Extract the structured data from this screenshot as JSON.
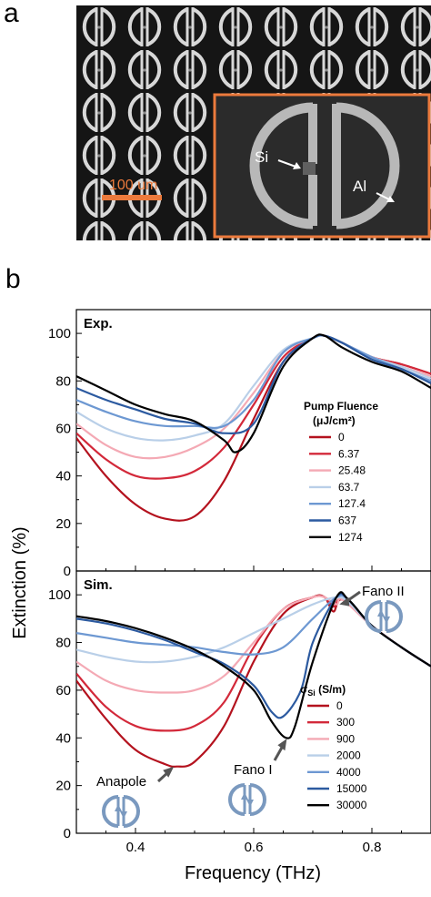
{
  "panel_a": {
    "letter": "a",
    "scale_bar_label": "100 um",
    "inset_label_si": "Si",
    "inset_label_al": "Al"
  },
  "panel_b": {
    "letter": "b",
    "xlabel": "Frequency (THz)",
    "ylabel": "Extinction (%)"
  },
  "chart_data": [
    {
      "type": "line",
      "title": "Exp.",
      "xlim": [
        0.3,
        0.9
      ],
      "ylim": [
        0,
        110
      ],
      "yticks": [
        0,
        20,
        40,
        60,
        80,
        100
      ],
      "legend_title": "Pump Fluence",
      "legend_unit": "(μJ/cm²)",
      "legend_position": "right",
      "series": [
        {
          "name": "0",
          "color": "#b4121e",
          "x": [
            0.3,
            0.35,
            0.4,
            0.45,
            0.5,
            0.55,
            0.6,
            0.65,
            0.7,
            0.72,
            0.75,
            0.8,
            0.85,
            0.9
          ],
          "y": [
            56,
            40,
            28,
            22,
            23,
            38,
            64,
            88,
            98,
            99,
            96,
            90,
            87,
            83
          ]
        },
        {
          "name": "6.37",
          "color": "#d3293a",
          "x": [
            0.3,
            0.35,
            0.4,
            0.45,
            0.5,
            0.55,
            0.6,
            0.65,
            0.7,
            0.72,
            0.75,
            0.8,
            0.85,
            0.9
          ],
          "y": [
            58,
            47,
            40,
            39,
            42,
            52,
            70,
            90,
            98,
            99,
            96,
            90,
            87,
            83
          ]
        },
        {
          "name": "25.48",
          "color": "#f4a9b4",
          "x": [
            0.3,
            0.35,
            0.4,
            0.45,
            0.5,
            0.55,
            0.6,
            0.65,
            0.7,
            0.72,
            0.75,
            0.8,
            0.85,
            0.9
          ],
          "y": [
            62,
            53,
            48,
            48,
            52,
            60,
            75,
            92,
            98,
            99,
            96,
            90,
            86,
            82
          ]
        },
        {
          "name": "63.7",
          "color": "#b9cfe8",
          "x": [
            0.3,
            0.35,
            0.4,
            0.45,
            0.5,
            0.55,
            0.6,
            0.65,
            0.7,
            0.72,
            0.75,
            0.8,
            0.85,
            0.9
          ],
          "y": [
            67,
            60,
            56,
            55,
            57,
            62,
            78,
            93,
            98,
            99,
            96,
            90,
            86,
            81
          ]
        },
        {
          "name": "127.4",
          "color": "#6d98d2",
          "x": [
            0.3,
            0.35,
            0.4,
            0.45,
            0.5,
            0.55,
            0.6,
            0.65,
            0.7,
            0.72,
            0.75,
            0.8,
            0.85,
            0.9
          ],
          "y": [
            72,
            67,
            63,
            61,
            61,
            61,
            72,
            92,
            98,
            99,
            96,
            90,
            85,
            80
          ]
        },
        {
          "name": "637",
          "color": "#2c5aa0",
          "x": [
            0.3,
            0.35,
            0.4,
            0.45,
            0.5,
            0.55,
            0.6,
            0.65,
            0.7,
            0.72,
            0.75,
            0.8,
            0.85,
            0.9
          ],
          "y": [
            77,
            72,
            68,
            64,
            62,
            58,
            62,
            88,
            98,
            99,
            96,
            89,
            85,
            79
          ]
        },
        {
          "name": "1274",
          "color": "#000000",
          "x": [
            0.3,
            0.35,
            0.4,
            0.45,
            0.5,
            0.55,
            0.57,
            0.6,
            0.65,
            0.7,
            0.72,
            0.75,
            0.8,
            0.85,
            0.9
          ],
          "y": [
            82,
            76,
            70,
            66,
            63,
            55,
            50,
            58,
            86,
            98,
            99,
            94,
            88,
            84,
            77
          ]
        }
      ]
    },
    {
      "type": "line",
      "title": "Sim.",
      "xlim": [
        0.3,
        0.9
      ],
      "ylim": [
        0,
        110
      ],
      "yticks": [
        0,
        20,
        40,
        60,
        80,
        100
      ],
      "xticks": [
        0.4,
        0.6,
        0.8
      ],
      "legend_title": "σSi (S/m)",
      "legend_position": "right",
      "annotations": [
        "Anapole",
        "Fano I",
        "Fano II"
      ],
      "series": [
        {
          "name": "0",
          "color": "#b4121e",
          "x": [
            0.3,
            0.35,
            0.4,
            0.45,
            0.47,
            0.5,
            0.55,
            0.6,
            0.65,
            0.7,
            0.72,
            0.735,
            0.75,
            0.8,
            0.85,
            0.9
          ],
          "y": [
            64,
            48,
            35,
            29,
            28,
            30,
            45,
            72,
            92,
            99,
            99,
            93,
            98,
            87,
            78,
            70
          ]
        },
        {
          "name": "300",
          "color": "#d3293a",
          "x": [
            0.3,
            0.35,
            0.4,
            0.45,
            0.5,
            0.55,
            0.6,
            0.65,
            0.7,
            0.72,
            0.735,
            0.75,
            0.8,
            0.85,
            0.9
          ],
          "y": [
            67,
            53,
            45,
            43,
            45,
            55,
            78,
            94,
            99,
            99,
            95,
            98,
            87,
            78,
            70
          ]
        },
        {
          "name": "900",
          "color": "#f4a9b4",
          "x": [
            0.3,
            0.35,
            0.4,
            0.45,
            0.5,
            0.55,
            0.6,
            0.65,
            0.7,
            0.72,
            0.74,
            0.75,
            0.8,
            0.85,
            0.9
          ],
          "y": [
            72,
            64,
            60,
            59,
            60,
            66,
            80,
            94,
            99,
            99,
            96,
            98,
            87,
            78,
            70
          ]
        },
        {
          "name": "2000",
          "color": "#b9cfe8",
          "x": [
            0.3,
            0.35,
            0.4,
            0.45,
            0.5,
            0.55,
            0.6,
            0.65,
            0.7,
            0.74,
            0.76,
            0.8,
            0.85,
            0.9
          ],
          "y": [
            77,
            74,
            72,
            72,
            74,
            78,
            84,
            90,
            96,
            99,
            97,
            87,
            78,
            70
          ]
        },
        {
          "name": "4000",
          "color": "#6d98d2",
          "x": [
            0.3,
            0.35,
            0.4,
            0.45,
            0.5,
            0.55,
            0.6,
            0.65,
            0.7,
            0.74,
            0.76,
            0.8,
            0.85,
            0.9
          ],
          "y": [
            84,
            82,
            80,
            79,
            78,
            76,
            75,
            78,
            90,
            99,
            98,
            87,
            78,
            70
          ]
        },
        {
          "name": "15000",
          "color": "#2c5aa0",
          "x": [
            0.3,
            0.35,
            0.4,
            0.45,
            0.5,
            0.55,
            0.6,
            0.63,
            0.65,
            0.68,
            0.7,
            0.74,
            0.76,
            0.8,
            0.85,
            0.9
          ],
          "y": [
            90,
            88,
            85,
            81,
            76,
            71,
            62,
            51,
            49,
            60,
            80,
            99,
            98,
            87,
            78,
            70
          ]
        },
        {
          "name": "30000",
          "color": "#000000",
          "x": [
            0.3,
            0.35,
            0.4,
            0.45,
            0.5,
            0.55,
            0.6,
            0.63,
            0.655,
            0.67,
            0.7,
            0.74,
            0.76,
            0.8,
            0.85,
            0.9
          ],
          "y": [
            91,
            89,
            86,
            82,
            77,
            70,
            60,
            47,
            40,
            45,
            72,
            99,
            98,
            87,
            78,
            70
          ]
        }
      ]
    }
  ]
}
